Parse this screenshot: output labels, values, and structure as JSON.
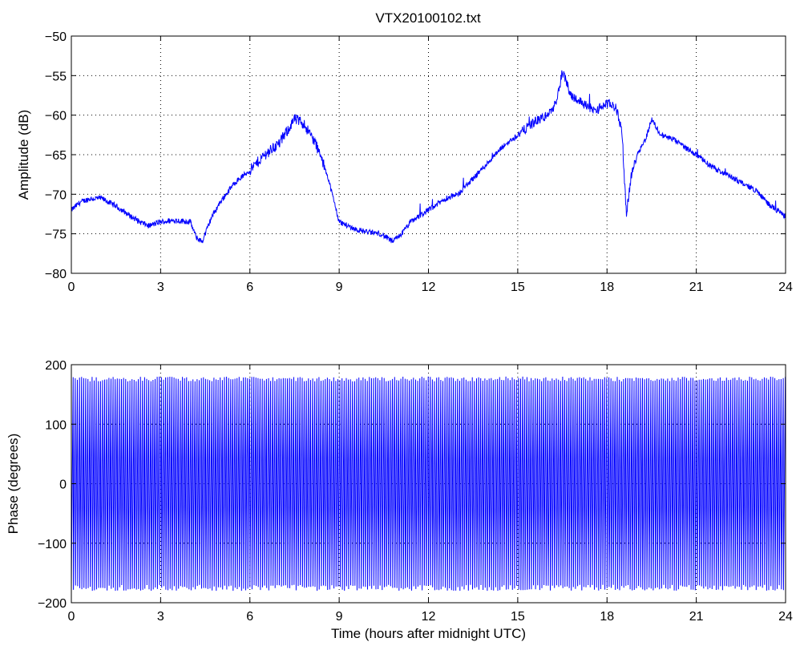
{
  "figure": {
    "title": "VTX20100102.txt"
  },
  "chart_data": [
    {
      "type": "line",
      "name_tag": "amplitude-plot",
      "title": "VTX20100102.txt",
      "xlabel": "",
      "ylabel": "Amplitude (dB)",
      "xlim": [
        0,
        24
      ],
      "ylim": [
        -80,
        -50
      ],
      "xticks": [
        0,
        3,
        6,
        9,
        12,
        15,
        18,
        21,
        24
      ],
      "yticks": [
        -80,
        -75,
        -70,
        -65,
        -60,
        -55,
        -50
      ],
      "xtick_labels": [
        "0",
        "3",
        "6",
        "9",
        "12",
        "15",
        "18",
        "21",
        "24"
      ],
      "ytick_labels": [
        "−80",
        "−75",
        "−70",
        "−65",
        "−60",
        "−55",
        "−50"
      ],
      "grid": true,
      "series_color": "#0000ff",
      "series": [
        {
          "x": [
            0.0,
            0.3,
            0.6,
            1.0,
            1.5,
            2.0,
            2.3,
            2.6,
            3.0,
            3.5,
            4.0,
            4.2,
            4.4,
            4.7,
            5.0,
            5.5,
            6.0,
            6.5,
            7.0,
            7.5,
            7.8,
            8.2,
            8.6,
            9.0,
            9.3,
            9.6,
            10.0,
            10.4,
            10.8,
            11.1,
            11.4,
            11.8,
            12.2,
            12.6,
            13.0,
            13.5,
            14.0,
            14.5,
            15.0,
            15.5,
            16.0,
            16.3,
            16.5,
            16.8,
            17.2,
            17.6,
            18.0,
            18.3,
            18.5,
            18.65,
            18.8,
            19.0,
            19.3,
            19.5,
            19.8,
            20.2,
            20.6,
            21.0,
            21.5,
            22.0,
            22.5,
            23.0,
            23.5,
            24.0
          ],
          "y": [
            -72.0,
            -71.0,
            -70.6,
            -70.5,
            -71.5,
            -72.8,
            -73.5,
            -74.0,
            -73.5,
            -73.3,
            -73.5,
            -75.5,
            -76.0,
            -73.0,
            -71.0,
            -68.5,
            -67.0,
            -65.0,
            -63.5,
            -60.5,
            -61.0,
            -63.5,
            -67.5,
            -73.5,
            -74.0,
            -74.5,
            -74.8,
            -75.0,
            -76.0,
            -75.0,
            -73.5,
            -72.5,
            -71.5,
            -70.5,
            -70.0,
            -68.0,
            -66.0,
            -64.0,
            -62.5,
            -61.0,
            -60.0,
            -58.5,
            -54.5,
            -57.5,
            -58.5,
            -59.5,
            -58.5,
            -59.0,
            -62.0,
            -72.5,
            -68.0,
            -65.0,
            -63.0,
            -60.5,
            -62.5,
            -63.0,
            -64.0,
            -65.0,
            -66.5,
            -67.5,
            -68.5,
            -69.5,
            -71.5,
            -72.8
          ]
        }
      ]
    },
    {
      "type": "line",
      "name_tag": "phase-plot",
      "title": "",
      "xlabel": "Time (hours after midnight UTC)",
      "ylabel": "Phase (degrees)",
      "xlim": [
        0,
        24
      ],
      "ylim": [
        -200,
        200
      ],
      "xticks": [
        0,
        3,
        6,
        9,
        12,
        15,
        18,
        21,
        24
      ],
      "yticks": [
        -200,
        -100,
        0,
        100,
        200
      ],
      "xtick_labels": [
        "0",
        "3",
        "6",
        "9",
        "12",
        "15",
        "18",
        "21",
        "24"
      ],
      "ytick_labels": [
        "−200",
        "−100",
        "0",
        "100",
        "200"
      ],
      "grid": true,
      "series_color": "#0000ff",
      "series": [
        {
          "x": [
            0,
            24
          ],
          "y": [
            -180,
            180
          ]
        }
      ]
    }
  ]
}
